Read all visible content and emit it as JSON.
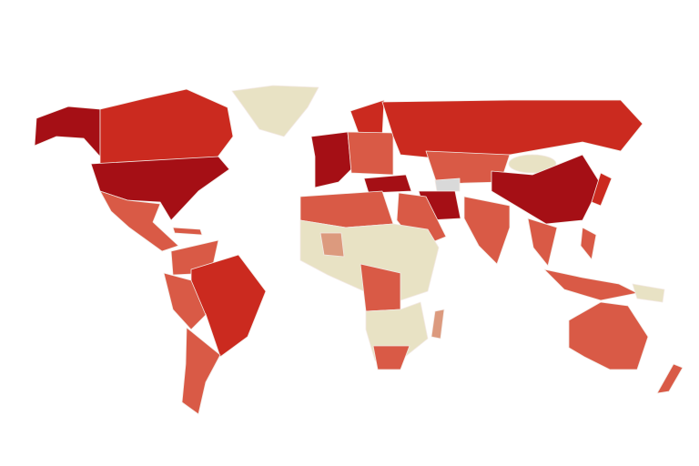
{
  "map": {
    "type": "choropleth-world",
    "color_scale": {
      "highest": "#a50f15",
      "high": "#cb2a1f",
      "medium": "#d95a46",
      "low": "#dc9a7e",
      "lowest": "#e8e2c4",
      "no_data": "#d9d9d9"
    }
  }
}
